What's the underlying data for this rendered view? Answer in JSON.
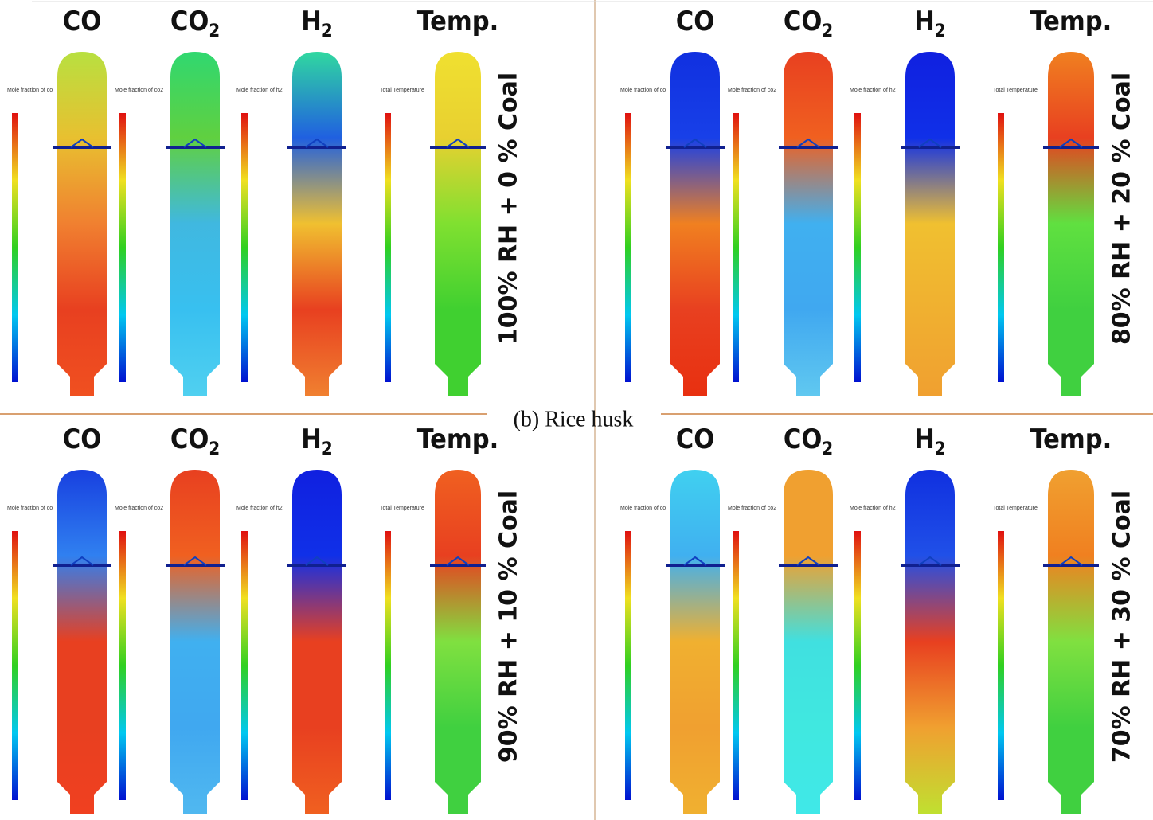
{
  "caption": "(b) Rice husk",
  "panels": [
    {
      "label": "100% RH + 0 % Coal",
      "fields": [
        {
          "name": "CO",
          "legend_title": "Mole fraction of co",
          "colors": [
            "#b8e040",
            "#e8c030",
            "#f08030",
            "#e84020",
            "#f05020"
          ]
        },
        {
          "name": "CO",
          "sub": "2",
          "legend_title": "Mole fraction of co2",
          "colors": [
            "#30d870",
            "#60d040",
            "#40b8e0",
            "#38c0f0",
            "#50d0f0"
          ]
        },
        {
          "name": "H",
          "sub": "2",
          "legend_title": "Mole fraction of h2",
          "colors": [
            "#30d8a0",
            "#2060e0",
            "#f0c030",
            "#e84020",
            "#f08030"
          ]
        },
        {
          "name": "Temp.",
          "legend_title": "Total Temperature",
          "colors": [
            "#f0e030",
            "#e8d030",
            "#80e030",
            "#40d030",
            "#40d030"
          ]
        }
      ]
    },
    {
      "label": "80% RH + 20 % Coal",
      "fields": [
        {
          "name": "CO",
          "legend_title": "Mole fraction of co",
          "colors": [
            "#1030e0",
            "#1840e8",
            "#f08020",
            "#e84020",
            "#e83010"
          ]
        },
        {
          "name": "CO",
          "sub": "2",
          "legend_title": "Mole fraction of co2",
          "colors": [
            "#e84020",
            "#f06020",
            "#40b0f0",
            "#40a8f0",
            "#60c8f0"
          ]
        },
        {
          "name": "H",
          "sub": "2",
          "legend_title": "Mole fraction of h2",
          "colors": [
            "#1020e0",
            "#1030e8",
            "#f0c030",
            "#f0b030",
            "#f0a030"
          ]
        },
        {
          "name": "Temp.",
          "legend_title": "Total Temperature",
          "colors": [
            "#f08020",
            "#e84020",
            "#60e040",
            "#40d040",
            "#40d040"
          ]
        }
      ]
    },
    {
      "label": "90% RH + 10 % Coal",
      "fields": [
        {
          "name": "CO",
          "legend_title": "Mole fraction of co",
          "colors": [
            "#1840e0",
            "#3080f0",
            "#e84020",
            "#e84020",
            "#f04020"
          ]
        },
        {
          "name": "CO",
          "sub": "2",
          "legend_title": "Mole fraction of co2",
          "colors": [
            "#e84020",
            "#f06020",
            "#40b0f0",
            "#40a8f0",
            "#50b8f0"
          ]
        },
        {
          "name": "H",
          "sub": "2",
          "legend_title": "Mole fraction of h2",
          "colors": [
            "#1020e0",
            "#1030e8",
            "#e84020",
            "#e84020",
            "#f06020"
          ]
        },
        {
          "name": "Temp.",
          "legend_title": "Total Temperature",
          "colors": [
            "#f06020",
            "#e84020",
            "#80e040",
            "#40d040",
            "#40d040"
          ]
        }
      ]
    },
    {
      "label": "70% RH + 30 % Coal",
      "fields": [
        {
          "name": "CO",
          "legend_title": "Mole fraction of co",
          "colors": [
            "#40d0f0",
            "#40b0f0",
            "#f0b030",
            "#f0a030",
            "#f0b030"
          ]
        },
        {
          "name": "CO",
          "sub": "2",
          "legend_title": "Mole fraction of co2",
          "colors": [
            "#f0a030",
            "#f0a030",
            "#40e0e0",
            "#40e8e0",
            "#40e8e8"
          ]
        },
        {
          "name": "H",
          "sub": "2",
          "legend_title": "Mole fraction of h2",
          "colors": [
            "#1030e0",
            "#2050e8",
            "#e84020",
            "#f0a030",
            "#c0e030"
          ]
        },
        {
          "name": "Temp.",
          "legend_title": "Total Temperature",
          "colors": [
            "#f0a030",
            "#f08020",
            "#80e040",
            "#40d040",
            "#40d040"
          ]
        }
      ]
    }
  ]
}
